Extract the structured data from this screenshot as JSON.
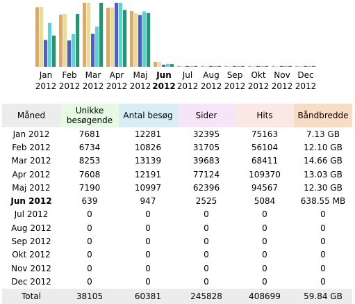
{
  "colors": {
    "unique": "#e3a85a",
    "visits": "#eedc8c",
    "pages": "#4a5fcf",
    "hits": "#50d8d8",
    "bandwidth": "#1a9a73"
  },
  "chart_data": {
    "type": "bar",
    "categories": [
      "Jan",
      "Feb",
      "Mar",
      "Apr",
      "Maj",
      "Jun",
      "Jul",
      "Aug",
      "Sep",
      "Okt",
      "Nov",
      "Dec"
    ],
    "years": [
      "2012",
      "2012",
      "2012",
      "2012",
      "2012",
      "2012",
      "2012",
      "2012",
      "2012",
      "2012",
      "2012",
      "2012"
    ],
    "current_index": 5,
    "series": [
      {
        "key": "unique",
        "values": [
          7681,
          6734,
          8253,
          7608,
          7190,
          639,
          0,
          0,
          0,
          0,
          0,
          0
        ]
      },
      {
        "key": "visits",
        "values": [
          12281,
          10826,
          13139,
          12191,
          10997,
          947,
          0,
          0,
          0,
          0,
          0,
          0
        ]
      },
      {
        "key": "pages",
        "values": [
          32395,
          31705,
          39683,
          77124,
          62396,
          2525,
          0,
          0,
          0,
          0,
          0,
          0
        ]
      },
      {
        "key": "hits",
        "values": [
          75163,
          56104,
          68411,
          109370,
          94567,
          5084,
          0,
          0,
          0,
          0,
          0,
          0
        ]
      },
      {
        "key": "bandwidth_gb",
        "values": [
          7.13,
          12.1,
          14.66,
          13.03,
          12.3,
          0.62,
          0,
          0,
          0,
          0,
          0,
          0
        ]
      }
    ],
    "grid": false
  },
  "table": {
    "headers": {
      "month": "Måned",
      "unique_line1": "Unikke",
      "unique_line2": "besøgende",
      "visits": "Antal besøg",
      "pages": "Sider",
      "hits": "Hits",
      "bandwidth": "Båndbredde"
    },
    "rows": [
      {
        "month": "Jan 2012",
        "unique": "7681",
        "visits": "12281",
        "pages": "32395",
        "hits": "75163",
        "bandwidth": "7.13 GB"
      },
      {
        "month": "Feb 2012",
        "unique": "6734",
        "visits": "10826",
        "pages": "31705",
        "hits": "56104",
        "bandwidth": "12.10 GB"
      },
      {
        "month": "Mar 2012",
        "unique": "8253",
        "visits": "13139",
        "pages": "39683",
        "hits": "68411",
        "bandwidth": "14.66 GB"
      },
      {
        "month": "Apr 2012",
        "unique": "7608",
        "visits": "12191",
        "pages": "77124",
        "hits": "109370",
        "bandwidth": "13.03 GB"
      },
      {
        "month": "Maj 2012",
        "unique": "7190",
        "visits": "10997",
        "pages": "62396",
        "hits": "94567",
        "bandwidth": "12.30 GB"
      },
      {
        "month": "Jun 2012",
        "unique": "639",
        "visits": "947",
        "pages": "2525",
        "hits": "5084",
        "bandwidth": "638.55 MB"
      },
      {
        "month": "Jul 2012",
        "unique": "0",
        "visits": "0",
        "pages": "0",
        "hits": "0",
        "bandwidth": "0"
      },
      {
        "month": "Aug 2012",
        "unique": "0",
        "visits": "0",
        "pages": "0",
        "hits": "0",
        "bandwidth": "0"
      },
      {
        "month": "Sep 2012",
        "unique": "0",
        "visits": "0",
        "pages": "0",
        "hits": "0",
        "bandwidth": "0"
      },
      {
        "month": "Okt 2012",
        "unique": "0",
        "visits": "0",
        "pages": "0",
        "hits": "0",
        "bandwidth": "0"
      },
      {
        "month": "Nov 2012",
        "unique": "0",
        "visits": "0",
        "pages": "0",
        "hits": "0",
        "bandwidth": "0"
      },
      {
        "month": "Dec 2012",
        "unique": "0",
        "visits": "0",
        "pages": "0",
        "hits": "0",
        "bandwidth": "0"
      }
    ],
    "total": {
      "label": "Total",
      "unique": "38105",
      "visits": "60381",
      "pages": "245828",
      "hits": "408699",
      "bandwidth": "59.84 GB"
    }
  }
}
